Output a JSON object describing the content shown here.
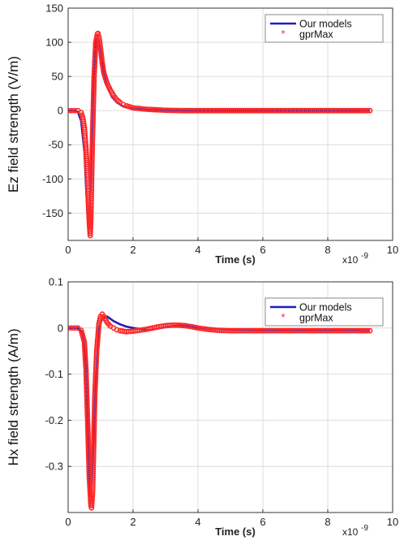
{
  "chart_data": [
    {
      "type": "line",
      "xlabel": "Time (s)",
      "ylabel": "Ez field strength (V/m)",
      "x_exponent_label": "x10",
      "x_exponent_power": "-9",
      "xlim": [
        0,
        10
      ],
      "ylim": [
        -190,
        150
      ],
      "xticks": [
        0,
        2,
        4,
        6,
        8,
        10
      ],
      "yticks": [
        150,
        100,
        50,
        0,
        -50,
        -100,
        -150
      ],
      "grid": true,
      "legend_position": "top-right",
      "series": [
        {
          "name": "Our models",
          "style": "line",
          "color": "#1f1fb4",
          "x": [
            0,
            0.2,
            0.3,
            0.4,
            0.5,
            0.55,
            0.6,
            0.64,
            0.7,
            0.78,
            0.86,
            0.92,
            1.0,
            1.1,
            1.2,
            1.35,
            1.5,
            1.7,
            2.0,
            2.5,
            3.0,
            4.0,
            6.0,
            8.0,
            9.3
          ],
          "y": [
            0,
            0,
            -2,
            -15,
            -60,
            -110,
            -158,
            -172,
            -100,
            40,
            105,
            108,
            85,
            55,
            35,
            20,
            12,
            6,
            3,
            1,
            0.5,
            0,
            0,
            0,
            0
          ]
        },
        {
          "name": "gprMax",
          "style": "markers",
          "color": "#ff2a2a",
          "x": [
            0,
            0.1,
            0.2,
            0.3,
            0.4,
            0.45,
            0.5,
            0.55,
            0.6,
            0.63,
            0.66,
            0.68,
            0.7,
            0.72,
            0.75,
            0.8,
            0.85,
            0.9,
            0.92,
            0.95,
            1.0,
            1.05,
            1.1,
            1.2,
            1.3,
            1.4,
            1.5,
            1.6,
            1.7,
            1.8,
            2.0,
            2.2,
            2.4,
            2.6,
            2.8,
            3.0,
            3.5,
            4.0,
            4.5,
            5.0,
            5.5,
            6.0,
            6.5,
            7.0,
            7.5,
            8.0,
            8.5,
            9.0,
            9.3
          ],
          "y": [
            0,
            0,
            0,
            0,
            -3,
            -10,
            -25,
            -55,
            -100,
            -140,
            -170,
            -183,
            -160,
            -110,
            -40,
            50,
            100,
            112,
            113,
            108,
            90,
            70,
            55,
            40,
            30,
            22,
            16,
            12,
            9,
            7,
            4,
            3,
            2,
            1.5,
            1,
            0.5,
            0,
            0,
            0,
            0,
            0,
            0,
            0,
            0,
            0,
            0,
            0,
            0,
            0
          ]
        }
      ]
    },
    {
      "type": "line",
      "xlabel": "Time (s)",
      "ylabel": "Hx field strength (A/m)",
      "x_exponent_label": "x10",
      "x_exponent_power": "-9",
      "xlim": [
        0,
        10
      ],
      "ylim": [
        -0.4,
        0.1
      ],
      "xticks": [
        0,
        2,
        4,
        6,
        8,
        10
      ],
      "yticks": [
        0.1,
        0,
        -0.1,
        -0.2,
        -0.3
      ],
      "ytick_labels": [
        "0.1",
        "0",
        "-0.1",
        "-0.2",
        "-0.3"
      ],
      "grid": true,
      "legend_position": "top-right",
      "series": [
        {
          "name": "Our models",
          "style": "line",
          "color": "#1f1fb4",
          "x": [
            0,
            0.3,
            0.45,
            0.55,
            0.62,
            0.67,
            0.7,
            0.75,
            0.85,
            0.95,
            1.05,
            1.2,
            1.4,
            1.6,
            1.8,
            2.0,
            2.5,
            3.0,
            3.5,
            4.0,
            5.0,
            6.0,
            7.0,
            8.0,
            9.3
          ],
          "y": [
            0,
            0,
            -0.01,
            -0.08,
            -0.25,
            -0.36,
            -0.37,
            -0.3,
            -0.12,
            0.0,
            0.02,
            0.025,
            0.015,
            0.008,
            0.003,
            0.0,
            -0.005,
            0.002,
            0.006,
            0.0,
            -0.004,
            -0.005,
            -0.005,
            -0.005,
            -0.005
          ]
        },
        {
          "name": "gprMax",
          "style": "markers",
          "color": "#ff2a2a",
          "x": [
            0,
            0.1,
            0.2,
            0.3,
            0.4,
            0.5,
            0.55,
            0.6,
            0.65,
            0.7,
            0.72,
            0.75,
            0.78,
            0.82,
            0.88,
            0.95,
            1.0,
            1.05,
            1.1,
            1.2,
            1.3,
            1.4,
            1.5,
            1.6,
            1.8,
            2.0,
            2.2,
            2.4,
            2.6,
            2.8,
            3.0,
            3.2,
            3.4,
            3.6,
            3.8,
            4.0,
            4.3,
            4.6,
            5.0,
            5.4,
            5.8,
            6.2,
            6.6,
            7.0,
            7.4,
            7.8,
            8.2,
            8.6,
            9.0,
            9.3
          ],
          "y": [
            0,
            0,
            0,
            0,
            -0.005,
            -0.03,
            -0.09,
            -0.2,
            -0.32,
            -0.385,
            -0.39,
            -0.36,
            -0.28,
            -0.15,
            -0.05,
            0.01,
            0.025,
            0.03,
            0.025,
            0.012,
            0.004,
            0.0,
            -0.004,
            -0.006,
            -0.008,
            -0.007,
            -0.005,
            -0.003,
            0.0,
            0.003,
            0.005,
            0.006,
            0.006,
            0.005,
            0.003,
            0.0,
            -0.003,
            -0.005,
            -0.006,
            -0.006,
            -0.006,
            -0.006,
            -0.006,
            -0.006,
            -0.006,
            -0.006,
            -0.006,
            -0.006,
            -0.006,
            -0.006
          ]
        }
      ]
    }
  ]
}
